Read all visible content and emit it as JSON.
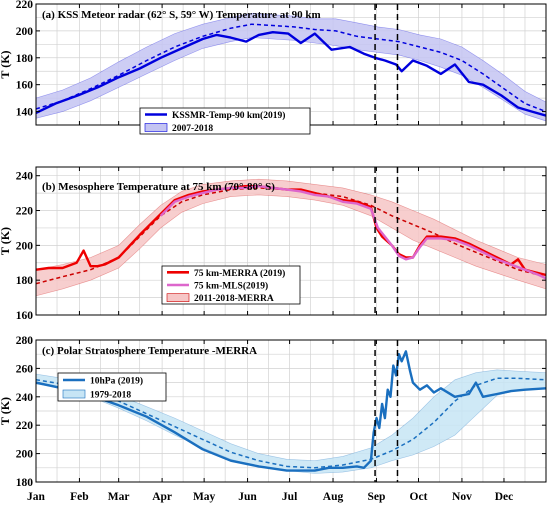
{
  "chart_data": [
    {
      "type": "line",
      "title": "(a) KSS Meteor radar (62° S, 59° W) Temperature at 90 km",
      "ylabel": "T (K)",
      "ylim": [
        130,
        220
      ],
      "yticks": [
        140,
        160,
        180,
        200,
        220
      ],
      "legend": "lower-center",
      "grid": true,
      "series": [
        {
          "name": "KSSMR-Temp-90 km(2019)",
          "style": "solid",
          "color": "#0000dd",
          "x": [
            1,
            15,
            31,
            45,
            59,
            75,
            90,
            105,
            120,
            130,
            140,
            151,
            160,
            170,
            181,
            190,
            200,
            212,
            225,
            235,
            243,
            250,
            258,
            262,
            270,
            280,
            290,
            300,
            310,
            320,
            333,
            345,
            355,
            365
          ],
          "y": [
            139,
            146,
            152,
            158,
            165,
            172,
            180,
            187,
            194,
            197,
            195,
            192,
            197,
            199,
            198,
            191,
            198,
            186,
            188,
            183,
            180,
            178,
            175,
            170,
            178,
            174,
            168,
            175,
            162,
            160,
            152,
            143,
            140,
            137
          ]
        },
        {
          "name": "2007-2018",
          "style": "dashed",
          "color": "#0000dd",
          "x": [
            1,
            20,
            40,
            60,
            80,
            100,
            120,
            140,
            155,
            170,
            185,
            200,
            215,
            230,
            245,
            260,
            275,
            290,
            305,
            320,
            335,
            350,
            365
          ],
          "y": [
            142,
            148,
            157,
            167,
            178,
            188,
            196,
            202,
            205,
            204,
            203,
            201,
            200,
            196,
            194,
            192,
            188,
            184,
            178,
            168,
            157,
            146,
            140
          ],
          "band_lower": [
            135,
            140,
            148,
            158,
            168,
            178,
            187,
            192,
            195,
            194,
            193,
            191,
            189,
            186,
            184,
            182,
            178,
            173,
            167,
            158,
            148,
            138,
            133
          ],
          "band_upper": [
            150,
            156,
            165,
            177,
            188,
            198,
            205,
            210,
            213,
            212,
            211,
            209,
            209,
            206,
            203,
            201,
            197,
            194,
            188,
            178,
            167,
            155,
            147
          ]
        }
      ]
    },
    {
      "type": "line",
      "title": "(b) Mesosphere Temperature at 75 km (70°-80° S)",
      "ylabel": "T (K)",
      "ylim": [
        160,
        245
      ],
      "yticks": [
        160,
        180,
        200,
        220,
        240
      ],
      "legend": "lower-left",
      "grid": true,
      "series": [
        {
          "name": "75 km-MERRA (2019)",
          "style": "solid",
          "color": "#ee0000",
          "x": [
            1,
            10,
            20,
            30,
            35,
            40,
            45,
            50,
            60,
            75,
            90,
            100,
            110,
            120,
            130,
            140,
            150,
            160,
            170,
            180,
            190,
            200,
            210,
            220,
            230,
            240,
            244,
            248,
            255,
            260,
            265,
            270,
            275,
            280,
            290,
            300,
            310,
            320,
            330,
            340,
            345,
            350,
            355,
            365
          ],
          "y": [
            186,
            187,
            187,
            190,
            197,
            188,
            188,
            189,
            193,
            206,
            218,
            226,
            229,
            231,
            232,
            233,
            234,
            234,
            233,
            232,
            232,
            230,
            228,
            226,
            225,
            222,
            210,
            205,
            200,
            195,
            193,
            193,
            200,
            205,
            205,
            204,
            201,
            197,
            193,
            189,
            192,
            186,
            185,
            183
          ]
        },
        {
          "name": "75 km-MLS(2019)",
          "style": "solid",
          "color": "#dd66cc",
          "x": [
            90,
            100,
            110,
            120,
            130,
            140,
            150,
            160,
            170,
            180,
            190,
            200,
            210,
            220,
            230,
            240,
            245,
            250,
            255,
            260,
            265,
            270,
            275,
            280,
            290,
            300,
            310,
            320,
            330,
            340,
            350,
            360,
            365
          ],
          "y": [
            217,
            225,
            228,
            230,
            232,
            233,
            233,
            234,
            233,
            232,
            231,
            229,
            228,
            225,
            224,
            221,
            210,
            205,
            200,
            194,
            192,
            193,
            199,
            204,
            204,
            203,
            200,
            196,
            192,
            189,
            186,
            183,
            181
          ]
        },
        {
          "name": "2011-2018-MERRA",
          "style": "dashed",
          "color": "#cc0000",
          "x": [
            1,
            20,
            40,
            60,
            75,
            90,
            105,
            120,
            140,
            160,
            180,
            200,
            220,
            240,
            255,
            270,
            285,
            300,
            315,
            330,
            345,
            365
          ],
          "y": [
            178,
            182,
            186,
            193,
            205,
            217,
            225,
            229,
            232,
            233,
            232,
            230,
            228,
            223,
            217,
            212,
            207,
            201,
            196,
            191,
            186,
            182
          ],
          "band_lower": [
            171,
            175,
            180,
            187,
            198,
            210,
            219,
            224,
            228,
            229,
            228,
            226,
            223,
            217,
            210,
            203,
            198,
            193,
            188,
            184,
            180,
            175
          ],
          "band_upper": [
            186,
            189,
            193,
            200,
            212,
            223,
            231,
            235,
            237,
            238,
            237,
            235,
            233,
            229,
            225,
            220,
            215,
            209,
            203,
            198,
            193,
            189
          ]
        }
      ]
    },
    {
      "type": "line",
      "title": "(c) Polar Stratosphere Temperature -MERRA",
      "ylabel": "T (K)",
      "ylim": [
        180,
        280
      ],
      "yticks": [
        180,
        200,
        220,
        240,
        260,
        280
      ],
      "legend": "upper-left",
      "grid": true,
      "series": [
        {
          "name": "10hPa (2019)",
          "style": "solid",
          "color": "#1a6fbf",
          "x": [
            1,
            20,
            40,
            60,
            80,
            100,
            120,
            140,
            160,
            180,
            190,
            200,
            210,
            220,
            230,
            235,
            240,
            242,
            244,
            246,
            248,
            250,
            252,
            254,
            256,
            258,
            260,
            262,
            265,
            268,
            270,
            275,
            280,
            285,
            290,
            300,
            310,
            315,
            320,
            330,
            340,
            350,
            365
          ],
          "y": [
            250,
            246,
            241,
            234,
            226,
            215,
            203,
            195,
            191,
            188,
            188,
            188,
            190,
            190,
            191,
            190,
            195,
            215,
            225,
            218,
            235,
            225,
            245,
            240,
            262,
            255,
            270,
            265,
            272,
            258,
            250,
            245,
            248,
            243,
            246,
            240,
            242,
            250,
            240,
            242,
            244,
            245,
            246
          ]
        },
        {
          "name": "1979-2018",
          "style": "dashed",
          "color": "#1a6fbf",
          "x": [
            1,
            20,
            40,
            60,
            80,
            100,
            120,
            140,
            160,
            180,
            200,
            220,
            240,
            255,
            270,
            285,
            300,
            315,
            330,
            345,
            365
          ],
          "y": [
            252,
            249,
            244,
            237,
            228,
            219,
            210,
            201,
            195,
            191,
            190,
            192,
            196,
            202,
            210,
            222,
            237,
            248,
            253,
            253,
            252
          ],
          "band_lower": [
            249,
            246,
            240,
            232,
            223,
            213,
            204,
            196,
            191,
            188,
            186,
            187,
            190,
            195,
            199,
            205,
            213,
            227,
            241,
            245,
            246
          ],
          "band_upper": [
            256,
            253,
            248,
            241,
            233,
            225,
            216,
            207,
            200,
            196,
            195,
            198,
            204,
            213,
            225,
            240,
            252,
            257,
            259,
            258,
            257
          ]
        }
      ]
    }
  ],
  "x_axis": {
    "range": [
      1,
      365
    ],
    "months": [
      "Jan",
      "Feb",
      "Mar",
      "Apr",
      "May",
      "Jun",
      "Jul",
      "Aug",
      "Sep",
      "Oct",
      "Nov",
      "Dec"
    ],
    "month_start_day": [
      1,
      32,
      60,
      91,
      121,
      152,
      182,
      213,
      244,
      274,
      305,
      335
    ]
  },
  "vertical_markers_day": [
    243,
    259
  ],
  "colors": {
    "blue": "#0000dd",
    "blue_band": "#c4c4f2",
    "red": "#ee0000",
    "pink": "#dd66cc",
    "red_band": "#f6c6c6",
    "steel": "#1a6fbf",
    "steel_band": "#c7e5f5"
  }
}
